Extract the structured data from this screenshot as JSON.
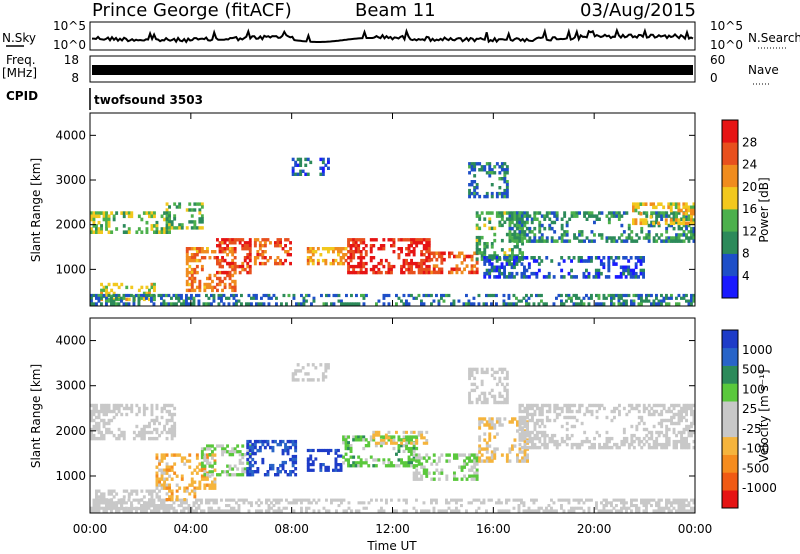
{
  "header": {
    "title": "Prince George (fitACF)",
    "beam": "Beam 11",
    "date": "03/Aug/2015"
  },
  "strips": {
    "nsky_label": "N.Sky",
    "nsearch_label": "N.Search",
    "noise_ticks": [
      "10^5",
      "10^0"
    ],
    "freq_label": "Freq.",
    "freq_unit": "[MHz]",
    "freq_ticks": [
      "18",
      "8"
    ],
    "nave_label": "Nave",
    "nave_ticks": [
      "60",
      "0"
    ],
    "cpid_label": "CPID",
    "cpid_value": "twofsound 3503"
  },
  "colors": {
    "power_scale": [
      "#1a1aff",
      "#1e4fc8",
      "#2c8a5a",
      "#4cb04c",
      "#f2c81e",
      "#f08c1e",
      "#e8501e",
      "#e61414"
    ],
    "velocity_scale": [
      "#e61414",
      "#f05a14",
      "#f58c1e",
      "#f5b43c",
      "#c8c8c8",
      "#c8c8c8",
      "#5ac83c",
      "#2c8a5a",
      "#2864c8",
      "#1e3cc8"
    ]
  },
  "chart_data": [
    {
      "type": "heatmap",
      "name": "power",
      "ylabel": "Slant Range [km]",
      "xlabel": "",
      "ylim": [
        180,
        4500
      ],
      "yticks": [
        "1000",
        "2000",
        "3000",
        "4000"
      ],
      "colorbar_label": "Power [dB]",
      "colorbar_ticks": [
        "4",
        "8",
        "12",
        "16",
        "20",
        "24",
        "28"
      ],
      "clim": [
        0,
        30
      ],
      "x_range": [
        "00:00",
        "24:00"
      ],
      "blobs": [
        {
          "t0": 0.0,
          "t1": 3.2,
          "r0": 1800,
          "r1": 2300,
          "v": 14
        },
        {
          "t0": 0.4,
          "t1": 2.6,
          "r0": 300,
          "r1": 700,
          "v": 16
        },
        {
          "t0": 3.0,
          "t1": 4.5,
          "r0": 1900,
          "r1": 2500,
          "v": 12
        },
        {
          "t0": 3.8,
          "t1": 5.8,
          "r0": 500,
          "r1": 1500,
          "v": 22
        },
        {
          "t0": 5.0,
          "t1": 6.4,
          "r0": 900,
          "r1": 1700,
          "v": 26
        },
        {
          "t0": 6.5,
          "t1": 8.0,
          "r0": 1100,
          "r1": 1700,
          "v": 24
        },
        {
          "t0": 8.6,
          "t1": 10.2,
          "r0": 1100,
          "r1": 1500,
          "v": 20
        },
        {
          "t0": 10.2,
          "t1": 13.5,
          "r0": 900,
          "r1": 1700,
          "v": 27
        },
        {
          "t0": 13.5,
          "t1": 15.4,
          "r0": 900,
          "r1": 1400,
          "v": 24
        },
        {
          "t0": 15.3,
          "t1": 17.2,
          "r0": 1200,
          "r1": 2300,
          "v": 12
        },
        {
          "t0": 16.6,
          "t1": 24.0,
          "r0": 1600,
          "r1": 2300,
          "v": 10
        },
        {
          "t0": 0.0,
          "t1": 24.0,
          "r0": 200,
          "r1": 450,
          "v": 8
        },
        {
          "t0": 15.6,
          "t1": 22.0,
          "r0": 800,
          "r1": 1300,
          "v": 6
        },
        {
          "t0": 8.0,
          "t1": 9.5,
          "r0": 3100,
          "r1": 3500,
          "v": 6
        },
        {
          "t0": 15.0,
          "t1": 16.6,
          "r0": 2600,
          "r1": 3400,
          "v": 8
        },
        {
          "t0": 21.5,
          "t1": 24.0,
          "r0": 2000,
          "r1": 2500,
          "v": 18
        }
      ]
    },
    {
      "type": "heatmap",
      "name": "velocity",
      "ylabel": "Slant Range [km]",
      "xlabel": "Time UT",
      "ylim": [
        180,
        4500
      ],
      "yticks": [
        "1000",
        "2000",
        "3000",
        "4000"
      ],
      "colorbar_label": "Velocity [m s⁻¹]",
      "colorbar_ticks": [
        "1000",
        "500",
        "100",
        "25",
        "-25",
        "-100",
        "-500",
        "-1000"
      ],
      "clim": [
        -1000,
        1000
      ],
      "x_range": [
        "00:00",
        "24:00"
      ],
      "xticks": [
        "00:00",
        "04:00",
        "08:00",
        "12:00",
        "16:00",
        "20:00",
        "00:00"
      ],
      "blobs": [
        {
          "t0": 0.0,
          "t1": 3.4,
          "r0": 1800,
          "r1": 2600,
          "v": 0
        },
        {
          "t0": 0.2,
          "t1": 2.8,
          "r0": 250,
          "r1": 700,
          "v": 0
        },
        {
          "t0": 2.6,
          "t1": 5.0,
          "r0": 700,
          "r1": 1500,
          "v": -300
        },
        {
          "t0": 4.4,
          "t1": 6.4,
          "r0": 1000,
          "r1": 1700,
          "v": 200
        },
        {
          "t0": 6.2,
          "t1": 8.2,
          "r0": 1000,
          "r1": 1800,
          "v": 800
        },
        {
          "t0": 8.6,
          "t1": 10.0,
          "r0": 1100,
          "r1": 1600,
          "v": 900
        },
        {
          "t0": 10.0,
          "t1": 13.0,
          "r0": 1200,
          "r1": 1900,
          "v": 300
        },
        {
          "t0": 11.2,
          "t1": 13.4,
          "r0": 1700,
          "r1": 2000,
          "v": -200
        },
        {
          "t0": 12.8,
          "t1": 15.4,
          "r0": 900,
          "r1": 1500,
          "v": 200
        },
        {
          "t0": 15.4,
          "t1": 17.4,
          "r0": 1300,
          "r1": 2300,
          "v": -200
        },
        {
          "t0": 17.0,
          "t1": 24.0,
          "r0": 1600,
          "r1": 2600,
          "v": 0
        },
        {
          "t0": 0.0,
          "t1": 24.0,
          "r0": 200,
          "r1": 500,
          "v": 0
        },
        {
          "t0": 3.0,
          "t1": 4.2,
          "r0": 450,
          "r1": 700,
          "v": -300
        },
        {
          "t0": 8.0,
          "t1": 9.5,
          "r0": 3100,
          "r1": 3500,
          "v": 0
        },
        {
          "t0": 15.0,
          "t1": 16.6,
          "r0": 2600,
          "r1": 3400,
          "v": 0
        }
      ]
    }
  ]
}
